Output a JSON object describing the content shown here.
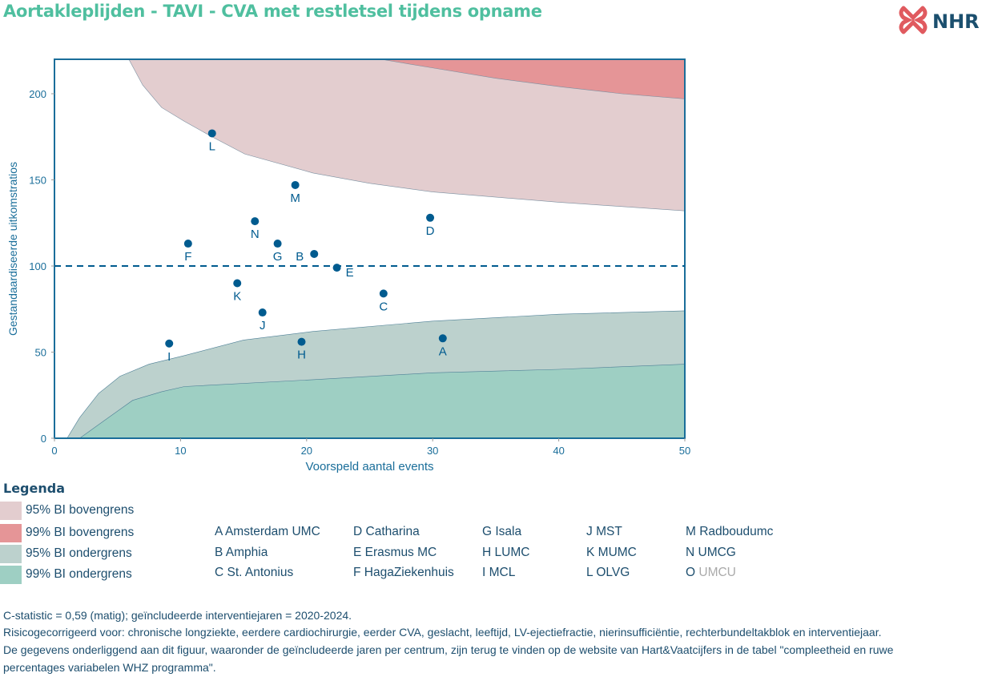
{
  "title": "Aortakleplijden - TAVI - CVA met restletsel tijdens opname",
  "logo_text": "NHR",
  "chart_data": {
    "type": "scatter",
    "xlabel": "Voorspeld aantal events",
    "ylabel": "Gestandaardiseerde uitkomstratios",
    "xlim": [
      0,
      50
    ],
    "ylim": [
      0,
      220
    ],
    "xticks": [
      0,
      10,
      20,
      30,
      40,
      50
    ],
    "yticks": [
      0,
      50,
      100,
      150,
      200
    ],
    "reference_line": 100,
    "grid": false,
    "points": [
      {
        "label": "A",
        "x": 30.8,
        "y": 58
      },
      {
        "label": "B",
        "x": 20.6,
        "y": 107
      },
      {
        "label": "C",
        "x": 26.1,
        "y": 84
      },
      {
        "label": "D",
        "x": 29.8,
        "y": 128
      },
      {
        "label": "E",
        "x": 22.4,
        "y": 99
      },
      {
        "label": "F",
        "x": 10.6,
        "y": 113
      },
      {
        "label": "G",
        "x": 17.7,
        "y": 113
      },
      {
        "label": "H",
        "x": 19.6,
        "y": 56
      },
      {
        "label": "I",
        "x": 9.1,
        "y": 55
      },
      {
        "label": "J",
        "x": 16.5,
        "y": 73
      },
      {
        "label": "K",
        "x": 14.5,
        "y": 90
      },
      {
        "label": "L",
        "x": 12.5,
        "y": 177
      },
      {
        "label": "M",
        "x": 19.1,
        "y": 147
      },
      {
        "label": "N",
        "x": 15.9,
        "y": 126
      }
    ],
    "bands": {
      "upper95": {
        "x": [
          5.9,
          7,
          8.5,
          10.3,
          12.5,
          15.1,
          20.5,
          25,
          30,
          40,
          50
        ],
        "y": [
          220,
          205,
          192,
          184,
          175,
          165,
          154,
          148,
          143,
          137,
          132
        ]
      },
      "upper99": {
        "x": [
          25.9,
          30,
          35,
          40.2,
          45,
          50
        ],
        "y": [
          220,
          215,
          209,
          204,
          200,
          197
        ]
      },
      "lower95": {
        "x": [
          1,
          2,
          3.5,
          5.2,
          7.5,
          10.3,
          15,
          20.5,
          30,
          40,
          50
        ],
        "y": [
          0,
          12,
          26,
          36,
          43,
          48,
          57,
          62,
          68,
          72,
          74
        ]
      },
      "lower99": {
        "x": [
          2,
          3.9,
          6.2,
          8.5,
          10.3,
          20.5,
          30,
          40,
          50
        ],
        "y": [
          0,
          10,
          22,
          27,
          30,
          34,
          38,
          40,
          43
        ]
      }
    },
    "colors": {
      "upper95": "#e3cdcf",
      "upper99": "#e59597",
      "lower95": "#bcd1cd",
      "lower99": "#9ecfc3",
      "points": "#005b8f",
      "axis": "#1a6e9a"
    }
  },
  "legend": {
    "title": "Legenda",
    "items": [
      {
        "label": "95% BI bovengrens",
        "color": "#e3cdcf"
      },
      {
        "label": "99% BI bovengrens",
        "color": "#e59597"
      },
      {
        "label": "95% BI ondergrens",
        "color": "#bcd1cd"
      },
      {
        "label": "99% BI ondergrens",
        "color": "#9ecfc3"
      }
    ],
    "hospitals": [
      {
        "code": "A",
        "name": "Amsterdam UMC"
      },
      {
        "code": "B",
        "name": "Amphia"
      },
      {
        "code": "C",
        "name": "St. Antonius"
      },
      {
        "code": "D",
        "name": "Catharina"
      },
      {
        "code": "E",
        "name": "Erasmus MC"
      },
      {
        "code": "F",
        "name": "HagaZiekenhuis"
      },
      {
        "code": "G",
        "name": "Isala"
      },
      {
        "code": "H",
        "name": "LUMC"
      },
      {
        "code": "I",
        "name": "MCL"
      },
      {
        "code": "J",
        "name": "MST"
      },
      {
        "code": "K",
        "name": "MUMC"
      },
      {
        "code": "L",
        "name": "OLVG"
      },
      {
        "code": "M",
        "name": "Radboudumc"
      },
      {
        "code": "N",
        "name": "UMCG"
      },
      {
        "code": "O",
        "name": "UMCU",
        "inactive": true
      }
    ]
  },
  "footer": [
    "C-statistic =  0,59 (matig); geïncludeerde interventiejaren = 2020-2024.",
    "Risicogecorrigeerd voor: chronische longziekte, eerdere cardiochirurgie, eerder CVA, geslacht, leeftijd, LV-ejectiefractie, nierinsufficiëntie, rechterbundeltakblok en interventiejaar.",
    "De gegevens onderliggend aan dit figuur, waaronder de geïncludeerde jaren per centrum, zijn terug te vinden op de website van Hart&Vaatcijfers in de tabel \"compleetheid en ruwe",
    "percentages variabelen WHZ programma\"."
  ]
}
